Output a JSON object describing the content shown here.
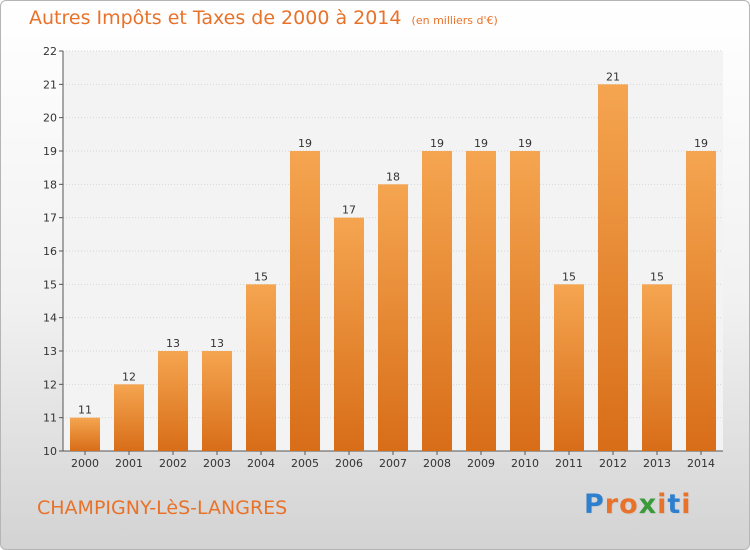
{
  "title": "Autres Impôts et Taxes de 2000 à 2014",
  "title_unit": "(en milliers d'€)",
  "town": "CHAMPIGNY-LèS-LANGRES",
  "logo": {
    "letters": [
      "P",
      "r",
      "o",
      "x",
      "i",
      "t",
      "i"
    ],
    "colors": [
      "#2f7fcf",
      "#e8722a",
      "#e8722a",
      "#3a9a3a",
      "#e8722a",
      "#2f7fcf",
      "#e8722a"
    ]
  },
  "colors": {
    "bar_top": "#f5a550",
    "bar_bottom": "#d86d18",
    "accent": "#e8722a"
  },
  "chart_data": {
    "type": "bar",
    "title": "Autres Impôts et Taxes de 2000 à 2014",
    "categories": [
      "2000",
      "2001",
      "2002",
      "2003",
      "2004",
      "2005",
      "2006",
      "2007",
      "2008",
      "2009",
      "2010",
      "2011",
      "2012",
      "2013",
      "2014"
    ],
    "values": [
      11,
      12,
      13,
      13,
      15,
      19,
      17,
      18,
      19,
      19,
      19,
      15,
      21,
      15,
      19
    ],
    "ylim": [
      10,
      22
    ],
    "yticks": [
      10,
      11,
      12,
      13,
      14,
      15,
      16,
      17,
      18,
      19,
      20,
      21,
      22
    ],
    "grid": "horizontal",
    "xlabel": "",
    "ylabel": ""
  }
}
